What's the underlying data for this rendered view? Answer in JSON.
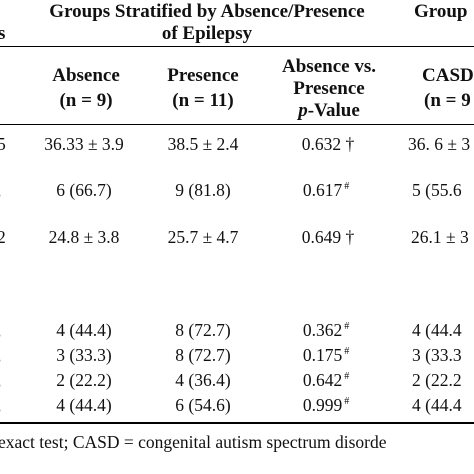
{
  "header": {
    "left_stub": "s",
    "group_title_line1": "Groups Stratified by Absence/Presence",
    "group_title_line2": "of Epilepsy",
    "right_group_title": "Group",
    "columns": {
      "absence": {
        "line1": "Absence",
        "line2": "(n = 9)"
      },
      "presence": {
        "line1": "Presence",
        "line2": "(n = 11)"
      },
      "pvalue": {
        "line1": "Absence vs.",
        "line2": "Presence",
        "line3_italic": "p",
        "line3_rest": "-Value"
      },
      "casd": {
        "line1": "CASD",
        "line2": "(n = 9"
      }
    }
  },
  "rows": [
    {
      "stub": "5",
      "absence": "36.33 ± 3.9",
      "presence": "38.5 ± 2.4",
      "p": "0.632 †",
      "p_sup": "",
      "casd": "36. 6 ± 3"
    },
    {
      "stub": ",",
      "absence": "6 (66.7)",
      "presence": "9 (81.8)",
      "p": "0.617",
      "p_sup": "#",
      "casd": "5 (55.6"
    },
    {
      "stub": "2",
      "absence": "24.8 ± 3.8",
      "presence": "25.7 ± 4.7",
      "p": "0.649 †",
      "p_sup": "",
      "casd": "26.1 ± 3"
    },
    {
      "stub": ",",
      "absence": "4 (44.4)",
      "presence": "8 (72.7)",
      "p": "0.362",
      "p_sup": "#",
      "casd": "4 (44.4"
    },
    {
      "stub": ",",
      "absence": "3 (33.3)",
      "presence": "8 (72.7)",
      "p": "0.175",
      "p_sup": "#",
      "casd": "3 (33.3"
    },
    {
      "stub": ",",
      "absence": "2 (22.2)",
      "presence": "4 (36.4)",
      "p": "0.642",
      "p_sup": "#",
      "casd": "2 (22.2"
    },
    {
      "stub": ",",
      "absence": "4 (44.4)",
      "presence": "6 (54.6)",
      "p": "0.999",
      "p_sup": "#",
      "casd": "4 (44.4"
    }
  ],
  "footnote": "exact test; CASD = congenital autism spectrum disorde"
}
